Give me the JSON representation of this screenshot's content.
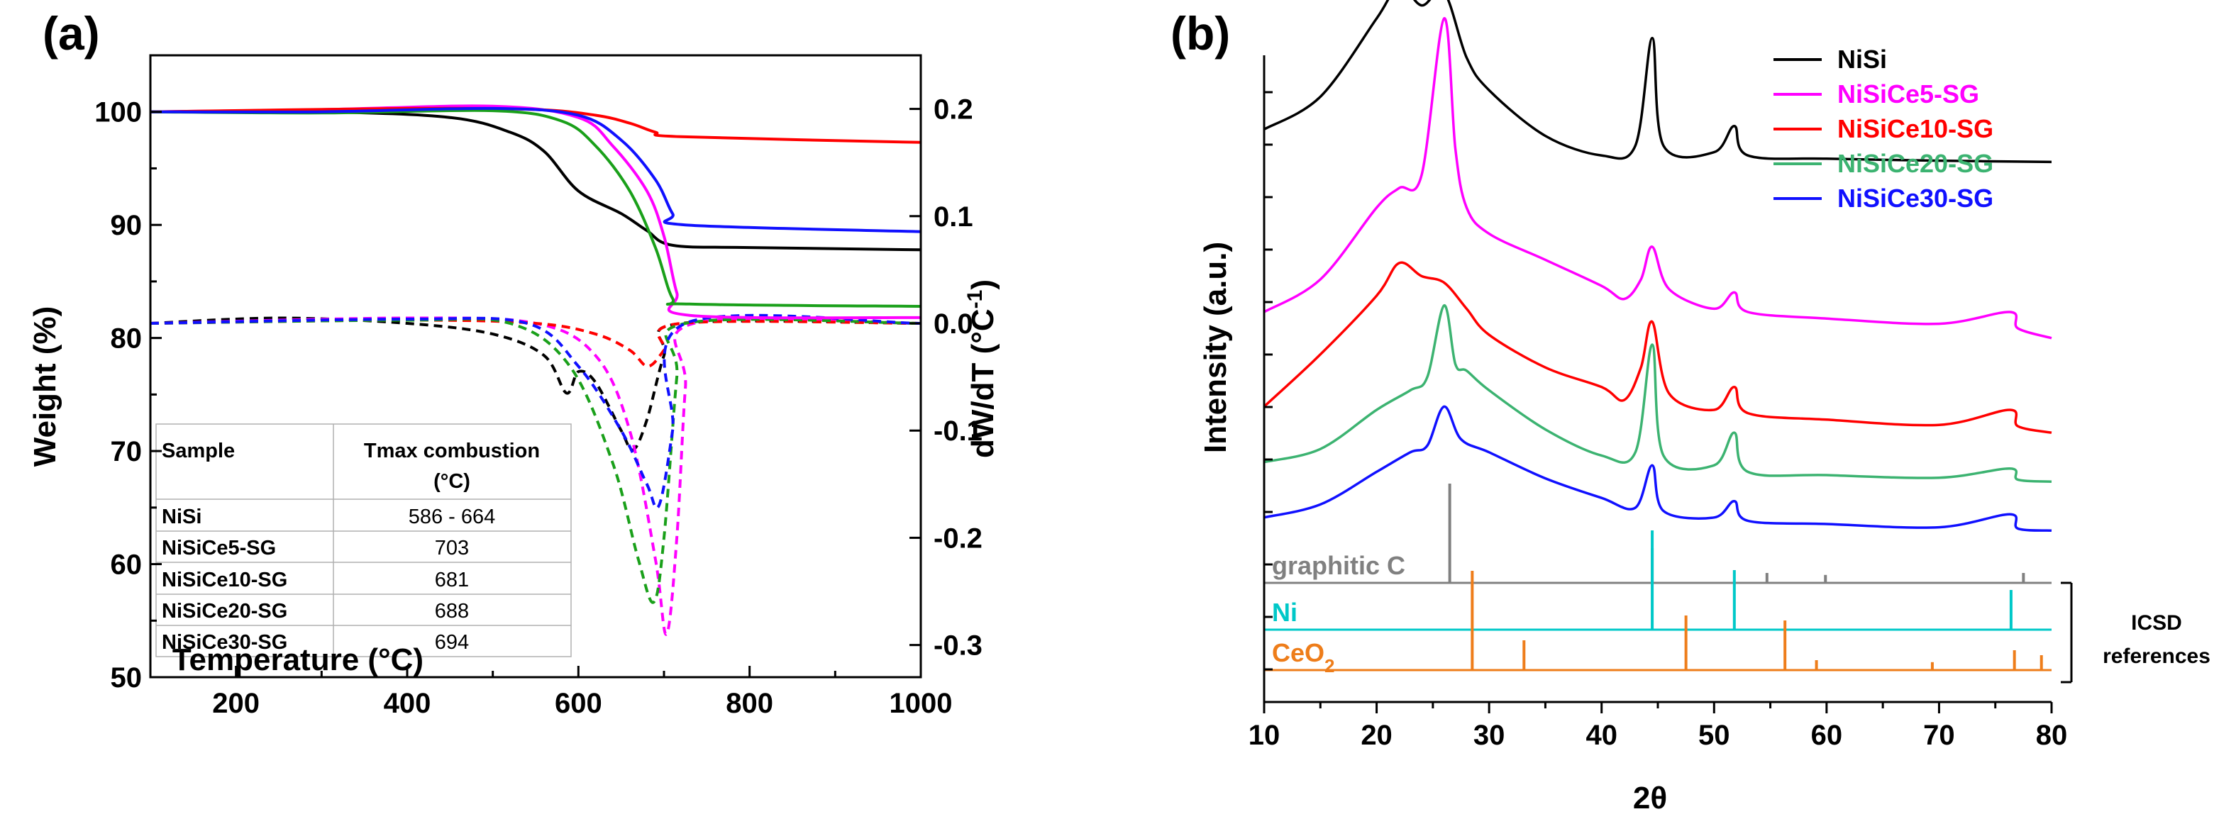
{
  "colors": {
    "NiSi": "#000000",
    "NiSiCe5-SG": "#ff00ff",
    "NiSiCe10-SG": "#ff0000",
    "NiSiCe20-SG": "#1aa01a",
    "NiSiCe30-SG": "#1010ff",
    "NiSiCe20-SG_xrd": "#3cb371",
    "graphitic": "#808080",
    "ni_ref": "#00c8c8",
    "ceo2_ref": "#ee7d1a"
  },
  "chart_data": [
    {
      "panel": "(a)",
      "type": "line",
      "xlabel": "Temperature (°C)",
      "ylabel": "Weight (%)",
      "y2label": "dW/dT (°C⁻¹)",
      "xlim": [
        100,
        1000
      ],
      "ylim": [
        50,
        105
      ],
      "y2lim": [
        -0.33,
        0.25
      ],
      "xticks": [
        "200",
        "400",
        "600",
        "800",
        "1000"
      ],
      "yticks": [
        "50",
        "60",
        "70",
        "80",
        "90",
        "100"
      ],
      "y2ticks": [
        "-0.3",
        "-0.2",
        "-0.1",
        "0.0",
        "0.1",
        "0.2"
      ],
      "tga_series": [
        {
          "name": "NiSi",
          "points": [
            [
              100,
              100
            ],
            [
              300,
              100
            ],
            [
              450,
              99.5
            ],
            [
              520,
              98.2
            ],
            [
              560,
              96.5
            ],
            [
              600,
              93
            ],
            [
              650,
              91
            ],
            [
              680,
              89.5
            ],
            [
              710,
              88.2
            ],
            [
              800,
              88
            ],
            [
              1000,
              87.8
            ]
          ]
        },
        {
          "name": "NiSiCe5-SG",
          "points": [
            [
              100,
              100
            ],
            [
              300,
              100.2
            ],
            [
              500,
              100.5
            ],
            [
              600,
              99.5
            ],
            [
              640,
              97
            ],
            [
              680,
              93
            ],
            [
              700,
              89
            ],
            [
              715,
              84
            ],
            [
              730,
              82
            ],
            [
              1000,
              81.8
            ]
          ]
        },
        {
          "name": "NiSiCe10-SG",
          "points": [
            [
              100,
              100
            ],
            [
              400,
              100.3
            ],
            [
              550,
              100.2
            ],
            [
              620,
              99.7
            ],
            [
              660,
              99
            ],
            [
              690,
              98.2
            ],
            [
              720,
              97.8
            ],
            [
              1000,
              97.3
            ]
          ]
        },
        {
          "name": "NiSiCe20-SG",
          "points": [
            [
              100,
              100
            ],
            [
              300,
              99.9
            ],
            [
              500,
              100.1
            ],
            [
              580,
              99.2
            ],
            [
              620,
              97
            ],
            [
              660,
              93
            ],
            [
              690,
              88
            ],
            [
              710,
              83.5
            ],
            [
              730,
              83
            ],
            [
              1000,
              82.8
            ]
          ]
        },
        {
          "name": "NiSiCe30-SG",
          "points": [
            [
              100,
              100
            ],
            [
              300,
              100
            ],
            [
              500,
              100.3
            ],
            [
              600,
              99.7
            ],
            [
              650,
              97.5
            ],
            [
              690,
              94
            ],
            [
              710,
              91
            ],
            [
              725,
              90
            ],
            [
              1000,
              89.4
            ]
          ]
        }
      ],
      "dtg_series": [
        {
          "name": "NiSi",
          "points": [
            [
              100,
              0
            ],
            [
              250,
              0.005
            ],
            [
              400,
              0
            ],
            [
              500,
              -0.01
            ],
            [
              560,
              -0.03
            ],
            [
              586,
              -0.065
            ],
            [
              600,
              -0.045
            ],
            [
              620,
              -0.055
            ],
            [
              650,
              -0.1
            ],
            [
              664,
              -0.118
            ],
            [
              680,
              -0.09
            ],
            [
              700,
              -0.03
            ],
            [
              720,
              0
            ],
            [
              1000,
              0
            ]
          ]
        },
        {
          "name": "NiSiCe5-SG",
          "points": [
            [
              100,
              0
            ],
            [
              400,
              0.005
            ],
            [
              550,
              0
            ],
            [
              620,
              -0.03
            ],
            [
              660,
              -0.1
            ],
            [
              690,
              -0.22
            ],
            [
              703,
              -0.29
            ],
            [
              715,
              -0.2
            ],
            [
              725,
              -0.06
            ],
            [
              735,
              0
            ],
            [
              1000,
              0
            ]
          ]
        },
        {
          "name": "NiSiCe10-SG",
          "points": [
            [
              100,
              0
            ],
            [
              400,
              0.003
            ],
            [
              550,
              0
            ],
            [
              620,
              -0.01
            ],
            [
              660,
              -0.025
            ],
            [
              681,
              -0.04
            ],
            [
              700,
              -0.025
            ],
            [
              720,
              0
            ],
            [
              1000,
              0
            ]
          ]
        },
        {
          "name": "NiSiCe20-SG",
          "points": [
            [
              100,
              0
            ],
            [
              400,
              0.003
            ],
            [
              520,
              0
            ],
            [
              590,
              -0.04
            ],
            [
              640,
              -0.13
            ],
            [
              670,
              -0.22
            ],
            [
              688,
              -0.26
            ],
            [
              700,
              -0.2
            ],
            [
              715,
              -0.05
            ],
            [
              725,
              0
            ],
            [
              1000,
              0
            ]
          ]
        },
        {
          "name": "NiSiCe30-SG",
          "points": [
            [
              100,
              0
            ],
            [
              400,
              0.004
            ],
            [
              540,
              0
            ],
            [
              600,
              -0.04
            ],
            [
              650,
              -0.1
            ],
            [
              680,
              -0.15
            ],
            [
              694,
              -0.17
            ],
            [
              710,
              -0.1
            ],
            [
              725,
              0
            ],
            [
              1000,
              0
            ]
          ]
        }
      ],
      "table": {
        "headers": [
          "Sample",
          "Tmax combustion",
          "(°C)"
        ],
        "rows": [
          {
            "sample": "NiSi",
            "tmax": "586 - 664"
          },
          {
            "sample": "NiSiCe5-SG",
            "tmax": "703"
          },
          {
            "sample": "NiSiCe10-SG",
            "tmax": "681"
          },
          {
            "sample": "NiSiCe20-SG",
            "tmax": "688"
          },
          {
            "sample": "NiSiCe30-SG",
            "tmax": "694"
          }
        ]
      }
    },
    {
      "panel": "(b)",
      "type": "line",
      "xlabel": "2θ",
      "ylabel": "Intensity (a.u.)",
      "xlim": [
        10,
        80
      ],
      "xticks": [
        "10",
        "20",
        "30",
        "40",
        "50",
        "60",
        "70",
        "80"
      ],
      "legend": [
        "NiSi",
        "NiSiCe5-SG",
        "NiSiCe10-SG",
        "NiSiCe20-SG",
        "NiSiCe30-SG"
      ],
      "legend_position": "top-right",
      "series": [
        {
          "name": "NiSi",
          "offset": 7.3,
          "points": [
            [
              10,
              0.5
            ],
            [
              15,
              1.0
            ],
            [
              20,
              2.2
            ],
            [
              22,
              2.7
            ],
            [
              24,
              2.4
            ],
            [
              26,
              2.6
            ],
            [
              28,
              1.6
            ],
            [
              30,
              1.1
            ],
            [
              35,
              0.4
            ],
            [
              40,
              0.1
            ],
            [
              43,
              0.25
            ],
            [
              44.5,
              1.9
            ],
            [
              45.5,
              0.25
            ],
            [
              50,
              0.15
            ],
            [
              51.8,
              0.55
            ],
            [
              53,
              0.1
            ],
            [
              60,
              0.05
            ],
            [
              70,
              0.02
            ],
            [
              80,
              0
            ]
          ]
        },
        {
          "name": "NiSiCe5-SG",
          "offset": 4.6,
          "points": [
            [
              10,
              0.4
            ],
            [
              15,
              0.9
            ],
            [
              20,
              2.0
            ],
            [
              22,
              2.3
            ],
            [
              24,
              2.5
            ],
            [
              26,
              4.9
            ],
            [
              27,
              2.9
            ],
            [
              28,
              2.0
            ],
            [
              30,
              1.6
            ],
            [
              35,
              1.2
            ],
            [
              40,
              0.8
            ],
            [
              42,
              0.6
            ],
            [
              43.5,
              0.9
            ],
            [
              44.5,
              1.4
            ],
            [
              46,
              0.75
            ],
            [
              50,
              0.45
            ],
            [
              51.8,
              0.7
            ],
            [
              53,
              0.4
            ],
            [
              60,
              0.3
            ],
            [
              70,
              0.22
            ],
            [
              76.3,
              0.4
            ],
            [
              77,
              0.15
            ],
            [
              80,
              0
            ]
          ]
        },
        {
          "name": "NiSiCe10-SG",
          "offset": 3.15,
          "points": [
            [
              10,
              0.4
            ],
            [
              15,
              1.2
            ],
            [
              20,
              2.1
            ],
            [
              22,
              2.6
            ],
            [
              24,
              2.4
            ],
            [
              26,
              2.3
            ],
            [
              28,
              1.9
            ],
            [
              30,
              1.5
            ],
            [
              35,
              1.0
            ],
            [
              40,
              0.7
            ],
            [
              42,
              0.5
            ],
            [
              43.5,
              1.0
            ],
            [
              44.5,
              1.7
            ],
            [
              46,
              0.6
            ],
            [
              50,
              0.35
            ],
            [
              51.8,
              0.7
            ],
            [
              53,
              0.3
            ],
            [
              60,
              0.2
            ],
            [
              70,
              0.12
            ],
            [
              76.3,
              0.35
            ],
            [
              77,
              0.1
            ],
            [
              80,
              0
            ]
          ]
        },
        {
          "name": "NiSiCe20-SG",
          "offset": 2.4,
          "points": [
            [
              10,
              0.3
            ],
            [
              15,
              0.5
            ],
            [
              20,
              1.1
            ],
            [
              23,
              1.4
            ],
            [
              24.5,
              1.6
            ],
            [
              26,
              2.7
            ],
            [
              27,
              1.8
            ],
            [
              28,
              1.7
            ],
            [
              30,
              1.4
            ],
            [
              35,
              0.8
            ],
            [
              40,
              0.4
            ],
            [
              43,
              0.45
            ],
            [
              44.5,
              2.1
            ],
            [
              45.5,
              0.4
            ],
            [
              50,
              0.25
            ],
            [
              51.8,
              0.75
            ],
            [
              53,
              0.15
            ],
            [
              60,
              0.1
            ],
            [
              70,
              0.06
            ],
            [
              76.3,
              0.2
            ],
            [
              77,
              0.03
            ],
            [
              80,
              0
            ]
          ]
        },
        {
          "name": "NiSiCe30-SG",
          "offset": 1.65,
          "points": [
            [
              10,
              0.2
            ],
            [
              15,
              0.4
            ],
            [
              20,
              0.9
            ],
            [
              23,
              1.2
            ],
            [
              24.5,
              1.3
            ],
            [
              26,
              1.9
            ],
            [
              27.5,
              1.4
            ],
            [
              30,
              1.2
            ],
            [
              35,
              0.8
            ],
            [
              40,
              0.5
            ],
            [
              43,
              0.35
            ],
            [
              44.5,
              1.0
            ],
            [
              45.5,
              0.3
            ],
            [
              50,
              0.2
            ],
            [
              51.8,
              0.45
            ],
            [
              53,
              0.15
            ],
            [
              60,
              0.1
            ],
            [
              70,
              0.05
            ],
            [
              76.3,
              0.25
            ],
            [
              77,
              0.03
            ],
            [
              80,
              0
            ]
          ]
        }
      ],
      "references": [
        {
          "name": "graphitic C",
          "label_main": "graphitic C",
          "label_sub": "",
          "peaks": [
            [
              26.5,
              1.0
            ],
            [
              44.5,
              0.35
            ],
            [
              54.7,
              0.1
            ],
            [
              59.9,
              0.08
            ],
            [
              77.5,
              0.1
            ]
          ]
        },
        {
          "name": "Ni",
          "label_main": "Ni",
          "label_sub": "",
          "peaks": [
            [
              44.5,
              1.0
            ],
            [
              51.8,
              0.6
            ],
            [
              76.4,
              0.4
            ]
          ]
        },
        {
          "name": "CeO2",
          "label_main": "CeO",
          "label_sub": "2",
          "peaks": [
            [
              28.5,
              1.0
            ],
            [
              33.1,
              0.3
            ],
            [
              47.5,
              0.55
            ],
            [
              56.3,
              0.5
            ],
            [
              59.1,
              0.1
            ],
            [
              69.4,
              0.08
            ],
            [
              76.7,
              0.2
            ],
            [
              79.1,
              0.15
            ]
          ]
        }
      ],
      "annotation": [
        "ICSD",
        "references"
      ]
    }
  ]
}
